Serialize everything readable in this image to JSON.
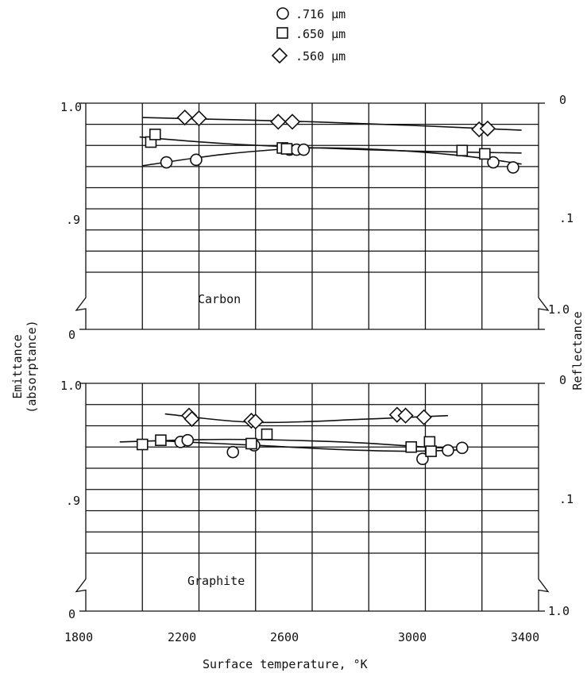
{
  "legend": [
    {
      "marker": "circle",
      "label": ".716 μm"
    },
    {
      "marker": "square",
      "label": ".650 μm"
    },
    {
      "marker": "diamond",
      "label": ".560 μm"
    }
  ],
  "xlabel": "Surface temperature, °K",
  "ylabel_left_line1": "Emittance",
  "ylabel_left_line2": "(absorptance)",
  "ylabel_right": "Reflectance",
  "chart_data": [
    {
      "type": "scatter",
      "panel": "Carbon",
      "xlim": [
        1800,
        3400
      ],
      "ylim": [
        0.8,
        1.0
      ],
      "y_axis_break_to": 0,
      "x_ticks": [
        "1800",
        "2200",
        "2600",
        "3000",
        "3400"
      ],
      "y_left_ticks": [
        "1.0",
        ".9",
        "0"
      ],
      "y_right_ticks": [
        "0",
        ".1",
        "1.0"
      ],
      "grid": true,
      "series": [
        {
          "name": ".716 μm",
          "marker": "circle",
          "points": [
            [
              2085,
              0.93
            ],
            [
              2190,
              0.933
            ],
            [
              2520,
              0.945
            ],
            [
              2545,
              0.945
            ],
            [
              2570,
              0.945
            ],
            [
              3240,
              0.93
            ],
            [
              3310,
              0.924
            ]
          ],
          "fit": [
            [
              2000,
              0.926
            ],
            [
              2300,
              0.94
            ],
            [
              2600,
              0.947
            ],
            [
              2900,
              0.944
            ],
            [
              3150,
              0.937
            ],
            [
              3340,
              0.928
            ]
          ]
        },
        {
          "name": ".650 μm",
          "marker": "square",
          "points": [
            [
              2030,
              0.954
            ],
            [
              2045,
              0.963
            ],
            [
              2495,
              0.947
            ],
            [
              2510,
              0.946
            ],
            [
              3130,
              0.944
            ],
            [
              3210,
              0.94
            ]
          ],
          "fit": [
            [
              1990,
              0.96
            ],
            [
              2300,
              0.952
            ],
            [
              2700,
              0.946
            ],
            [
              3000,
              0.943
            ],
            [
              3340,
              0.941
            ]
          ]
        },
        {
          "name": ".560 μm",
          "marker": "diamond",
          "points": [
            [
              2150,
              0.983
            ],
            [
              2200,
              0.982
            ],
            [
              2480,
              0.978
            ],
            [
              2530,
              0.978
            ],
            [
              3190,
              0.969
            ],
            [
              3220,
              0.97
            ]
          ],
          "fit": [
            [
              2000,
              0.983
            ],
            [
              2600,
              0.978
            ],
            [
              3000,
              0.973
            ],
            [
              3340,
              0.968
            ]
          ]
        }
      ]
    },
    {
      "type": "scatter",
      "panel": "Graphite",
      "xlim": [
        1800,
        3400
      ],
      "ylim": [
        0.8,
        1.0
      ],
      "y_axis_break_to": 0,
      "x_ticks": [
        "1800",
        "2200",
        "2600",
        "3000",
        "3400"
      ],
      "y_left_ticks": [
        "1.0",
        ".9",
        "0"
      ],
      "y_right_ticks": [
        "0",
        ".1",
        "1.0"
      ],
      "grid": true,
      "series": [
        {
          "name": ".716 μm",
          "marker": "circle",
          "points": [
            [
              2135,
              0.931
            ],
            [
              2160,
              0.933
            ],
            [
              2320,
              0.919
            ],
            [
              2395,
              0.927
            ],
            [
              2990,
              0.911
            ],
            [
              3080,
              0.921
            ],
            [
              3130,
              0.924
            ]
          ],
          "fit": [
            [
              2080,
              0.932
            ],
            [
              2400,
              0.927
            ],
            [
              2700,
              0.922
            ],
            [
              2950,
              0.92
            ],
            [
              3150,
              0.922
            ]
          ]
        },
        {
          "name": ".650 μm",
          "marker": "square",
          "points": [
            [
              2000,
              0.928
            ],
            [
              2065,
              0.933
            ],
            [
              2385,
              0.929
            ],
            [
              2440,
              0.94
            ],
            [
              2950,
              0.925
            ],
            [
              3015,
              0.931
            ],
            [
              3020,
              0.92
            ]
          ],
          "fit": [
            [
              1920,
              0.931
            ],
            [
              2300,
              0.934
            ],
            [
              2700,
              0.931
            ],
            [
              3000,
              0.925
            ],
            [
              3080,
              0.924
            ]
          ]
        },
        {
          "name": ".560 μm",
          "marker": "diamond",
          "points": [
            [
              2165,
              0.962
            ],
            [
              2175,
              0.958
            ],
            [
              2385,
              0.956
            ],
            [
              2400,
              0.955
            ],
            [
              2900,
              0.963
            ],
            [
              2930,
              0.962
            ],
            [
              2995,
              0.96
            ]
          ],
          "fit": [
            [
              2080,
              0.964
            ],
            [
              2400,
              0.954
            ],
            [
              2800,
              0.958
            ],
            [
              3080,
              0.962
            ]
          ]
        }
      ]
    }
  ]
}
